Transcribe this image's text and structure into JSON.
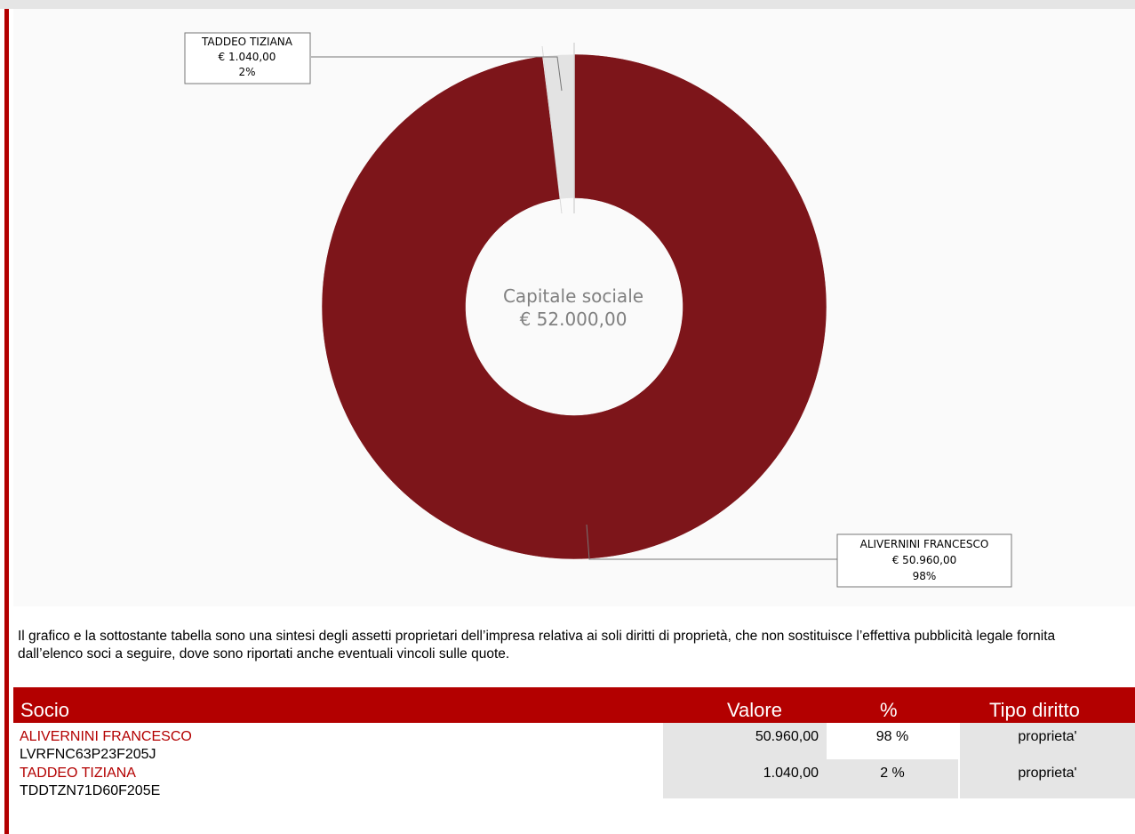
{
  "chart_data": {
    "type": "pie",
    "style": "donut",
    "center_label": "Capitale sociale",
    "center_value": "€ 52.000,00",
    "slices": [
      {
        "name": "ALIVERNINI FRANCESCO",
        "value": 50960,
        "value_label": "€ 50.960,00",
        "percent_label": "98%",
        "color": "#7d151a"
      },
      {
        "name": "TADDEO TIZIANA",
        "value": 1040,
        "value_label": "€ 1.040,00",
        "percent_label": "2%",
        "color": "#e3e3e3"
      }
    ]
  },
  "note": "Il grafico e la sottostante tabella sono una sintesi degli assetti proprietari dell’impresa relativa ai soli diritti di proprietà, che non sostituisce l’effettiva pubblicità legale fornita dall’elenco soci a seguire, dove sono riportati anche eventuali vincoli sulle quote.",
  "table": {
    "headers": [
      "Socio",
      "Valore",
      "%",
      "Tipo diritto"
    ],
    "rows": [
      {
        "socio": "ALIVERNINI FRANCESCO",
        "cf": "LVRFNC63P23F205J",
        "valore": "50.960,00",
        "percent": "98 %",
        "tipo": "proprieta'"
      },
      {
        "socio": "TADDEO TIZIANA",
        "cf": "TDDTZN71D60F205E",
        "valore": "1.040,00",
        "percent": "2 %",
        "tipo": "proprieta'"
      }
    ]
  },
  "colors": {
    "accent": "#b30000",
    "header_text": "#ffffff",
    "cell_bg": "#e5e5e5"
  }
}
